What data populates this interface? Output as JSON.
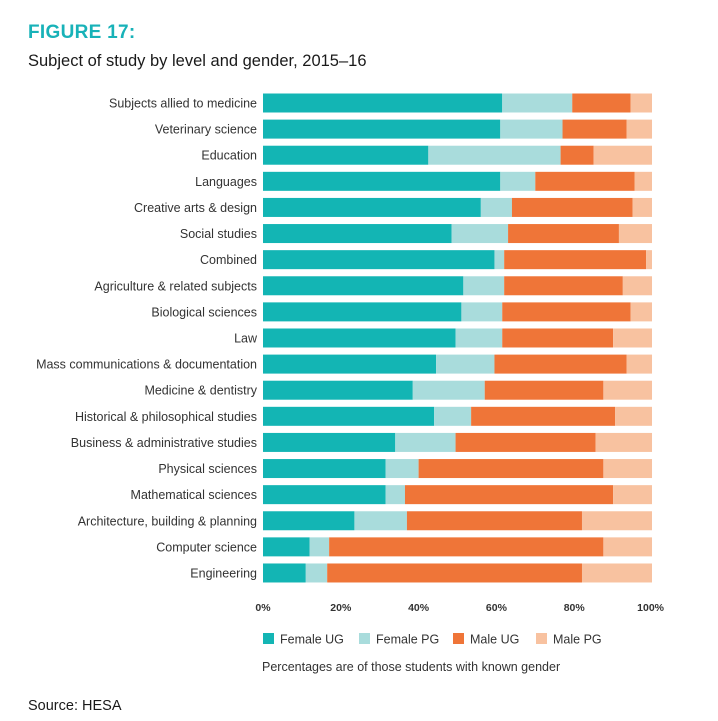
{
  "figure": {
    "label": "FIGURE 17:",
    "title": "Subject of study by level and gender, 2015–16",
    "note": "Percentages are of those students with known gender",
    "source": "Source: HESA"
  },
  "colors": {
    "female_ug": "#13b5b4",
    "female_pg": "#a9dcdc",
    "male_ug": "#ef7538",
    "male_pg": "#f8c2a0"
  },
  "chart_data": {
    "type": "bar",
    "orientation": "horizontal",
    "stacked": true,
    "title": "Subject of study by level and gender, 2015–16",
    "xlim": [
      0,
      100
    ],
    "xticks": [
      "0%",
      "20%",
      "40%",
      "60%",
      "80%",
      "100%"
    ],
    "grid": false,
    "legend_position": "bottom",
    "categories": [
      "Subjects allied to medicine",
      "Veterinary science",
      "Education",
      "Languages",
      "Creative arts & design",
      "Social studies",
      "Combined",
      "Agriculture & related subjects",
      "Biological sciences",
      "Law",
      "Mass communications & documentation",
      "Medicine & dentistry",
      "Historical & philosophical studies",
      "Business & administrative studies",
      "Physical sciences",
      "Mathematical sciences",
      "Architecture, building & planning",
      "Computer science",
      "Engineering"
    ],
    "series": [
      {
        "name": "Female UG",
        "color": "#13b5b4",
        "values": [
          61.5,
          61,
          42.5,
          61,
          56,
          48.5,
          59.5,
          51.5,
          51,
          49.5,
          44.5,
          38.5,
          44,
          34,
          31.5,
          31.5,
          23.5,
          12,
          11
        ]
      },
      {
        "name": "Female PG",
        "color": "#a9dcdc",
        "values": [
          18,
          16,
          34,
          9,
          8,
          14.5,
          2.5,
          10.5,
          10.5,
          12,
          15,
          18.5,
          9.5,
          15.5,
          8.5,
          5,
          13.5,
          5,
          5.5
        ]
      },
      {
        "name": "Male UG",
        "color": "#ef7538",
        "values": [
          15,
          16.5,
          8.5,
          25.5,
          31,
          28.5,
          36.5,
          30.5,
          33,
          28.5,
          34,
          30.5,
          37,
          36,
          47.5,
          53.5,
          45,
          70.5,
          65.5
        ]
      },
      {
        "name": "Male PG",
        "color": "#f8c2a0",
        "values": [
          5.5,
          6.5,
          15,
          4.5,
          5,
          8.5,
          1.5,
          7.5,
          5.5,
          10,
          6.5,
          12.5,
          9.5,
          14.5,
          12.5,
          10,
          18,
          12.5,
          18
        ]
      }
    ]
  }
}
